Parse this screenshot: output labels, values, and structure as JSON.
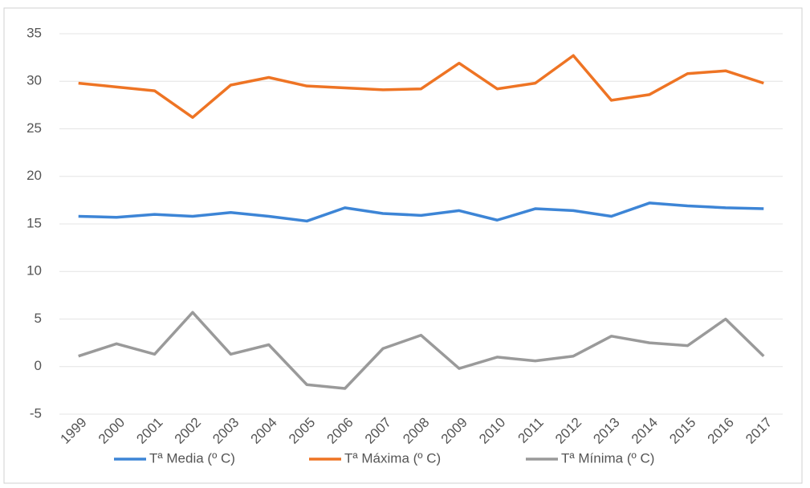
{
  "chart_data": {
    "type": "line",
    "categories": [
      "1999",
      "2000",
      "2001",
      "2002",
      "2003",
      "2004",
      "2005",
      "2006",
      "2007",
      "2008",
      "2009",
      "2010",
      "2011",
      "2012",
      "2013",
      "2014",
      "2015",
      "2016",
      "2017"
    ],
    "series": [
      {
        "name": "Tª Media (º C)",
        "color": "#3d85d6",
        "values": [
          15.8,
          15.7,
          16.0,
          15.8,
          16.2,
          15.8,
          15.3,
          16.7,
          16.1,
          15.9,
          16.4,
          15.4,
          16.6,
          16.4,
          15.8,
          17.2,
          16.9,
          16.7,
          16.6
        ]
      },
      {
        "name": "Tª Máxima (º C)",
        "color": "#ee7424",
        "values": [
          29.8,
          29.4,
          29.0,
          26.2,
          29.6,
          30.4,
          29.5,
          29.3,
          29.1,
          29.2,
          31.9,
          29.2,
          29.8,
          32.7,
          28.0,
          28.6,
          30.8,
          31.1,
          29.8
        ]
      },
      {
        "name": "Tª Mínima (º C)",
        "color": "#9a9a9a",
        "values": [
          1.1,
          2.4,
          1.3,
          5.7,
          1.3,
          2.3,
          -1.9,
          -2.3,
          1.9,
          3.3,
          -0.2,
          1.0,
          0.6,
          1.1,
          3.2,
          2.5,
          2.2,
          5.0,
          1.1
        ]
      }
    ],
    "ylim": [
      -5,
      35
    ],
    "yticks": [
      -5,
      0,
      5,
      10,
      15,
      20,
      25,
      30,
      35
    ],
    "grid": true,
    "legend": "bottom"
  }
}
